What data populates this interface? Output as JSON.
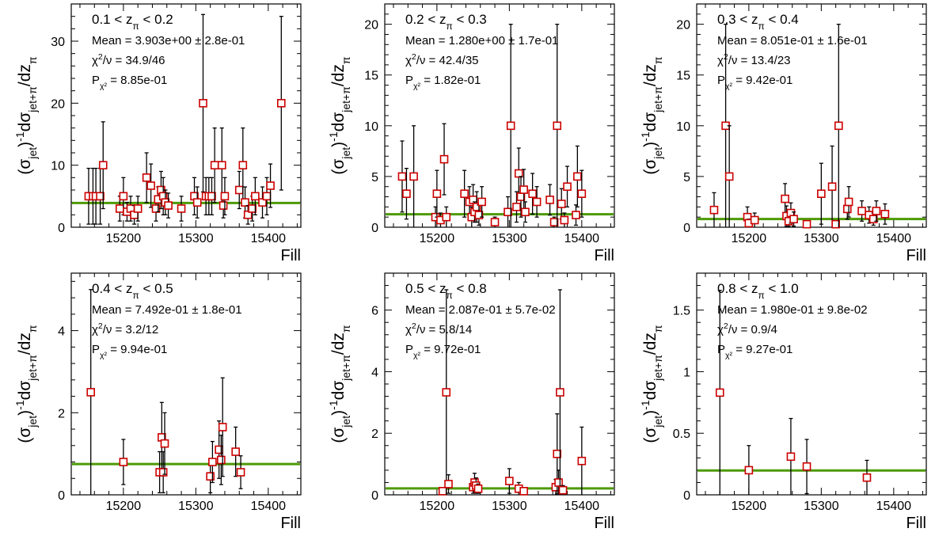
{
  "colors": {
    "marker": "#cc0000",
    "fit": "#4e9a06",
    "axis": "#000000"
  },
  "chart_data": [
    {
      "type": "scatter",
      "title": "0.1 < zπ < 0.2",
      "title_parts": {
        "pre": "0.1 < z",
        "sub": "π",
        "post": " < 0.2"
      },
      "stats": {
        "mean": "Mean = 3.903e+00 ± 2.8e-01",
        "chi2": "χ²/ν = 34.9/46",
        "prob": "Pχ² = 8.85e-01"
      },
      "xlabel": "Fill",
      "ylabel": "(σjet)⁻¹dσjet+π/dzπ",
      "xlim": [
        15128,
        15445
      ],
      "ylim": [
        0,
        36
      ],
      "xticks": [
        15200,
        15300,
        15400
      ],
      "yticks": [
        0,
        10,
        20,
        30
      ],
      "fit": 3.903,
      "points": [
        {
          "x": 15152,
          "y": 5,
          "e": 4.5
        },
        {
          "x": 15158,
          "y": 5,
          "e": 4.5
        },
        {
          "x": 15162,
          "y": 5,
          "e": 4.5
        },
        {
          "x": 15168,
          "y": 5,
          "e": 4.5
        },
        {
          "x": 15172,
          "y": 10,
          "e": 7
        },
        {
          "x": 15195,
          "y": 3,
          "e": 2
        },
        {
          "x": 15200,
          "y": 5,
          "e": 3
        },
        {
          "x": 15205,
          "y": 2.5,
          "e": 1.5
        },
        {
          "x": 15210,
          "y": 3,
          "e": 2
        },
        {
          "x": 15215,
          "y": 2,
          "e": 1.5
        },
        {
          "x": 15220,
          "y": 3,
          "e": 2
        },
        {
          "x": 15232,
          "y": 8,
          "e": 4
        },
        {
          "x": 15238,
          "y": 6.7,
          "e": 3.5
        },
        {
          "x": 15245,
          "y": 3,
          "e": 2
        },
        {
          "x": 15248,
          "y": 4.5,
          "e": 2
        },
        {
          "x": 15252,
          "y": 6,
          "e": 3
        },
        {
          "x": 15255,
          "y": 5,
          "e": 3
        },
        {
          "x": 15258,
          "y": 4,
          "e": 2
        },
        {
          "x": 15262,
          "y": 3.5,
          "e": 2
        },
        {
          "x": 15280,
          "y": 3,
          "e": 2
        },
        {
          "x": 15298,
          "y": 5,
          "e": 3
        },
        {
          "x": 15302,
          "y": 4,
          "e": 2.5
        },
        {
          "x": 15310,
          "y": 20,
          "e": 14.3
        },
        {
          "x": 15314,
          "y": 5,
          "e": 3
        },
        {
          "x": 15318,
          "y": 5,
          "e": 3
        },
        {
          "x": 15322,
          "y": 5,
          "e": 3
        },
        {
          "x": 15326,
          "y": 10,
          "e": 6
        },
        {
          "x": 15336,
          "y": 10,
          "e": 6
        },
        {
          "x": 15338,
          "y": 3.5,
          "e": 2
        },
        {
          "x": 15340,
          "y": 5,
          "e": 3
        },
        {
          "x": 15360,
          "y": 6,
          "e": 3
        },
        {
          "x": 15365,
          "y": 10,
          "e": 6
        },
        {
          "x": 15368,
          "y": 4,
          "e": 2.5
        },
        {
          "x": 15372,
          "y": 2,
          "e": 1.5
        },
        {
          "x": 15378,
          "y": 3,
          "e": 2
        },
        {
          "x": 15382,
          "y": 5,
          "e": 3
        },
        {
          "x": 15392,
          "y": 4,
          "e": 2.5
        },
        {
          "x": 15398,
          "y": 5,
          "e": 3
        },
        {
          "x": 15403,
          "y": 6.7,
          "e": 3.5
        },
        {
          "x": 15418,
          "y": 20,
          "e": 14
        }
      ]
    },
    {
      "type": "scatter",
      "title": "0.2 < zπ < 0.3",
      "title_parts": {
        "pre": "0.2 < z",
        "sub": "π",
        "post": " < 0.3"
      },
      "stats": {
        "mean": "Mean = 1.280e+00 ± 1.7e-01",
        "chi2": "χ²/ν = 42.4/35",
        "prob": "Pχ² = 1.82e-01"
      },
      "xlabel": "Fill",
      "ylabel": "(σjet)⁻¹dσjet+π/dzπ",
      "xlim": [
        15128,
        15445
      ],
      "ylim": [
        0,
        22
      ],
      "xticks": [
        15200,
        15300,
        15400
      ],
      "yticks": [
        0,
        5,
        10,
        15,
        20
      ],
      "fit": 1.28,
      "points": [
        {
          "x": 15152,
          "y": 5,
          "e": 3.5
        },
        {
          "x": 15158,
          "y": 3.3,
          "e": 2.5
        },
        {
          "x": 15168,
          "y": 5,
          "e": 5
        },
        {
          "x": 15198,
          "y": 1,
          "e": 1
        },
        {
          "x": 15200,
          "y": 3.3,
          "e": 2.3
        },
        {
          "x": 15205,
          "y": 0.7,
          "e": 0.7
        },
        {
          "x": 15210,
          "y": 6.7,
          "e": 3.5
        },
        {
          "x": 15213,
          "y": 1,
          "e": 1
        },
        {
          "x": 15238,
          "y": 3.3,
          "e": 2.3
        },
        {
          "x": 15245,
          "y": 2.5,
          "e": 1.5
        },
        {
          "x": 15248,
          "y": 1,
          "e": 1
        },
        {
          "x": 15250,
          "y": 2.7,
          "e": 1.5
        },
        {
          "x": 15252,
          "y": 1.5,
          "e": 1
        },
        {
          "x": 15255,
          "y": 2,
          "e": 1.5
        },
        {
          "x": 15258,
          "y": 1.2,
          "e": 1
        },
        {
          "x": 15262,
          "y": 2.5,
          "e": 1.5
        },
        {
          "x": 15280,
          "y": 0.5,
          "e": 0.5
        },
        {
          "x": 15298,
          "y": 1.5,
          "e": 1.5
        },
        {
          "x": 15302,
          "y": 10,
          "e": 10
        },
        {
          "x": 15310,
          "y": 2,
          "e": 1.5
        },
        {
          "x": 15313,
          "y": 5.3,
          "e": 2.5
        },
        {
          "x": 15316,
          "y": 3,
          "e": 2
        },
        {
          "x": 15320,
          "y": 3.7,
          "e": 2
        },
        {
          "x": 15322,
          "y": 1.5,
          "e": 1
        },
        {
          "x": 15332,
          "y": 3.3,
          "e": 2
        },
        {
          "x": 15338,
          "y": 2.5,
          "e": 1.5
        },
        {
          "x": 15356,
          "y": 2.7,
          "e": 1.5
        },
        {
          "x": 15362,
          "y": 0.5,
          "e": 0.5
        },
        {
          "x": 15366,
          "y": 10,
          "e": 10
        },
        {
          "x": 15372,
          "y": 2.3,
          "e": 1.5
        },
        {
          "x": 15376,
          "y": 0.7,
          "e": 0.7
        },
        {
          "x": 15380,
          "y": 4,
          "e": 2
        },
        {
          "x": 15392,
          "y": 1.2,
          "e": 1
        },
        {
          "x": 15394,
          "y": 5,
          "e": 3
        },
        {
          "x": 15400,
          "y": 3.3,
          "e": 2.3
        }
      ]
    },
    {
      "type": "scatter",
      "title": "0.3 < zπ < 0.4",
      "title_parts": {
        "pre": "0.3 < z",
        "sub": "π",
        "post": " < 0.4"
      },
      "stats": {
        "mean": "Mean = 8.051e-01 ± 1.6e-01",
        "chi2": "χ²/ν = 13.4/23",
        "prob": "Pχ² = 9.42e-01"
      },
      "xlabel": "Fill",
      "ylabel": "(σjet)⁻¹dσjet+π/dzπ",
      "xlim": [
        15128,
        15445
      ],
      "ylim": [
        0,
        22
      ],
      "xticks": [
        15200,
        15300,
        15400
      ],
      "yticks": [
        0,
        5,
        10,
        15,
        20
      ],
      "fit": 0.805,
      "points": [
        {
          "x": 15152,
          "y": 1.7,
          "e": 1.7
        },
        {
          "x": 15168,
          "y": 10,
          "e": 10
        },
        {
          "x": 15173,
          "y": 5,
          "e": 5
        },
        {
          "x": 15198,
          "y": 1,
          "e": 1
        },
        {
          "x": 15200,
          "y": 0.4,
          "e": 0.4
        },
        {
          "x": 15208,
          "y": 0.7,
          "e": 0.7
        },
        {
          "x": 15250,
          "y": 2.8,
          "e": 1.5
        },
        {
          "x": 15252,
          "y": 1.1,
          "e": 1
        },
        {
          "x": 15255,
          "y": 0.6,
          "e": 0.5
        },
        {
          "x": 15258,
          "y": 1.4,
          "e": 1
        },
        {
          "x": 15262,
          "y": 0.8,
          "e": 0.7
        },
        {
          "x": 15280,
          "y": 0.3,
          "e": 0.3
        },
        {
          "x": 15300,
          "y": 3.3,
          "e": 3
        },
        {
          "x": 15315,
          "y": 4,
          "e": 4
        },
        {
          "x": 15320,
          "y": 0.3,
          "e": 0.3
        },
        {
          "x": 15324,
          "y": 10,
          "e": 10
        },
        {
          "x": 15336,
          "y": 1.8,
          "e": 1
        },
        {
          "x": 15338,
          "y": 2.5,
          "e": 1.5
        },
        {
          "x": 15356,
          "y": 1.6,
          "e": 1
        },
        {
          "x": 15366,
          "y": 1.2,
          "e": 0.8
        },
        {
          "x": 15372,
          "y": 0.8,
          "e": 0.6
        },
        {
          "x": 15376,
          "y": 1.6,
          "e": 1
        },
        {
          "x": 15388,
          "y": 1.3,
          "e": 1
        }
      ]
    },
    {
      "type": "scatter",
      "title": "0.4 < zπ < 0.5",
      "title_parts": {
        "pre": "0.4 < z",
        "sub": "π",
        "post": " < 0.5"
      },
      "stats": {
        "mean": "Mean = 7.492e-01 ± 1.8e-01",
        "chi2": "χ²/ν = 3.2/12",
        "prob": "Pχ² = 9.94e-01"
      },
      "xlabel": "Fill",
      "ylabel": "(σjet)⁻¹dσjet+π/dzπ",
      "xlim": [
        15128,
        15445
      ],
      "ylim": [
        0,
        5.4
      ],
      "xticks": [
        15200,
        15300,
        15400
      ],
      "yticks": [
        0,
        2,
        4
      ],
      "fit": 0.749,
      "points": [
        {
          "x": 15155,
          "y": 2.5,
          "e": 2.5
        },
        {
          "x": 15200,
          "y": 0.8,
          "e": 0.55
        },
        {
          "x": 15250,
          "y": 0.55,
          "e": 0.5
        },
        {
          "x": 15253,
          "y": 1.4,
          "e": 0.85
        },
        {
          "x": 15255,
          "y": 0.55,
          "e": 0.5
        },
        {
          "x": 15257,
          "y": 1.25,
          "e": 0.75
        },
        {
          "x": 15320,
          "y": 0.45,
          "e": 0.4
        },
        {
          "x": 15323,
          "y": 0.8,
          "e": 0.5
        },
        {
          "x": 15332,
          "y": 1.1,
          "e": 0.7
        },
        {
          "x": 15335,
          "y": 0.85,
          "e": 0.6
        },
        {
          "x": 15337,
          "y": 1.65,
          "e": 1.2
        },
        {
          "x": 15355,
          "y": 1.05,
          "e": 0.6
        },
        {
          "x": 15362,
          "y": 0.55,
          "e": 0.4
        }
      ]
    },
    {
      "type": "scatter",
      "title": "0.5 < zπ < 0.8",
      "title_parts": {
        "pre": "0.5 < z",
        "sub": "π",
        "post": " < 0.8"
      },
      "stats": {
        "mean": "Mean = 2.087e-01 ± 5.7e-02",
        "chi2": "χ²/ν = 5.8/14",
        "prob": "Pχ² = 9.72e-01"
      },
      "xlabel": "Fill",
      "ylabel": "(σjet)⁻¹dσjet+π/dzπ",
      "xlim": [
        15128,
        15445
      ],
      "ylim": [
        0,
        7.2
      ],
      "xticks": [
        15200,
        15300,
        15400
      ],
      "yticks": [
        0,
        2,
        4,
        6
      ],
      "fit": 0.2087,
      "points": [
        {
          "x": 15208,
          "y": 0.12,
          "e": 0.12
        },
        {
          "x": 15213,
          "y": 3.33,
          "e": 3.33
        },
        {
          "x": 15216,
          "y": 0.35,
          "e": 0.3
        },
        {
          "x": 15250,
          "y": 0.25,
          "e": 0.2
        },
        {
          "x": 15252,
          "y": 0.4,
          "e": 0.3
        },
        {
          "x": 15254,
          "y": 0.3,
          "e": 0.25
        },
        {
          "x": 15257,
          "y": 0.2,
          "e": 0.15
        },
        {
          "x": 15300,
          "y": 0.45,
          "e": 0.4
        },
        {
          "x": 15313,
          "y": 0.2,
          "e": 0.2
        },
        {
          "x": 15320,
          "y": 0.12,
          "e": 0.12
        },
        {
          "x": 15364,
          "y": 0.25,
          "e": 0.25
        },
        {
          "x": 15366,
          "y": 1.33,
          "e": 1.3
        },
        {
          "x": 15368,
          "y": 0.4,
          "e": 0.4
        },
        {
          "x": 15370,
          "y": 3.33,
          "e": 3.33
        },
        {
          "x": 15374,
          "y": 0.15,
          "e": 0.15
        },
        {
          "x": 15400,
          "y": 1.1,
          "e": 1.1
        }
      ]
    },
    {
      "type": "scatter",
      "title": "0.8 < zπ < 1.0",
      "title_parts": {
        "pre": "0.8 < z",
        "sub": "π",
        "post": " < 1.0"
      },
      "stats": {
        "mean": "Mean = 1.980e-01 ± 9.8e-02",
        "chi2": "χ²/ν = 0.9/4",
        "prob": "Pχ² = 9.27e-01"
      },
      "xlabel": "Fill",
      "ylabel": "(σjet)⁻¹dσjet+π/dzπ",
      "xlim": [
        15128,
        15445
      ],
      "ylim": [
        0,
        1.8
      ],
      "xticks": [
        15200,
        15300,
        15400
      ],
      "yticks": [
        0,
        0.5,
        1,
        1.5
      ],
      "fit": 0.198,
      "points": [
        {
          "x": 15160,
          "y": 0.83,
          "e": 0.83
        },
        {
          "x": 15200,
          "y": 0.2,
          "e": 0.2
        },
        {
          "x": 15258,
          "y": 0.31,
          "e": 0.31
        },
        {
          "x": 15280,
          "y": 0.23,
          "e": 0.22
        },
        {
          "x": 15363,
          "y": 0.14,
          "e": 0.14
        }
      ]
    }
  ]
}
